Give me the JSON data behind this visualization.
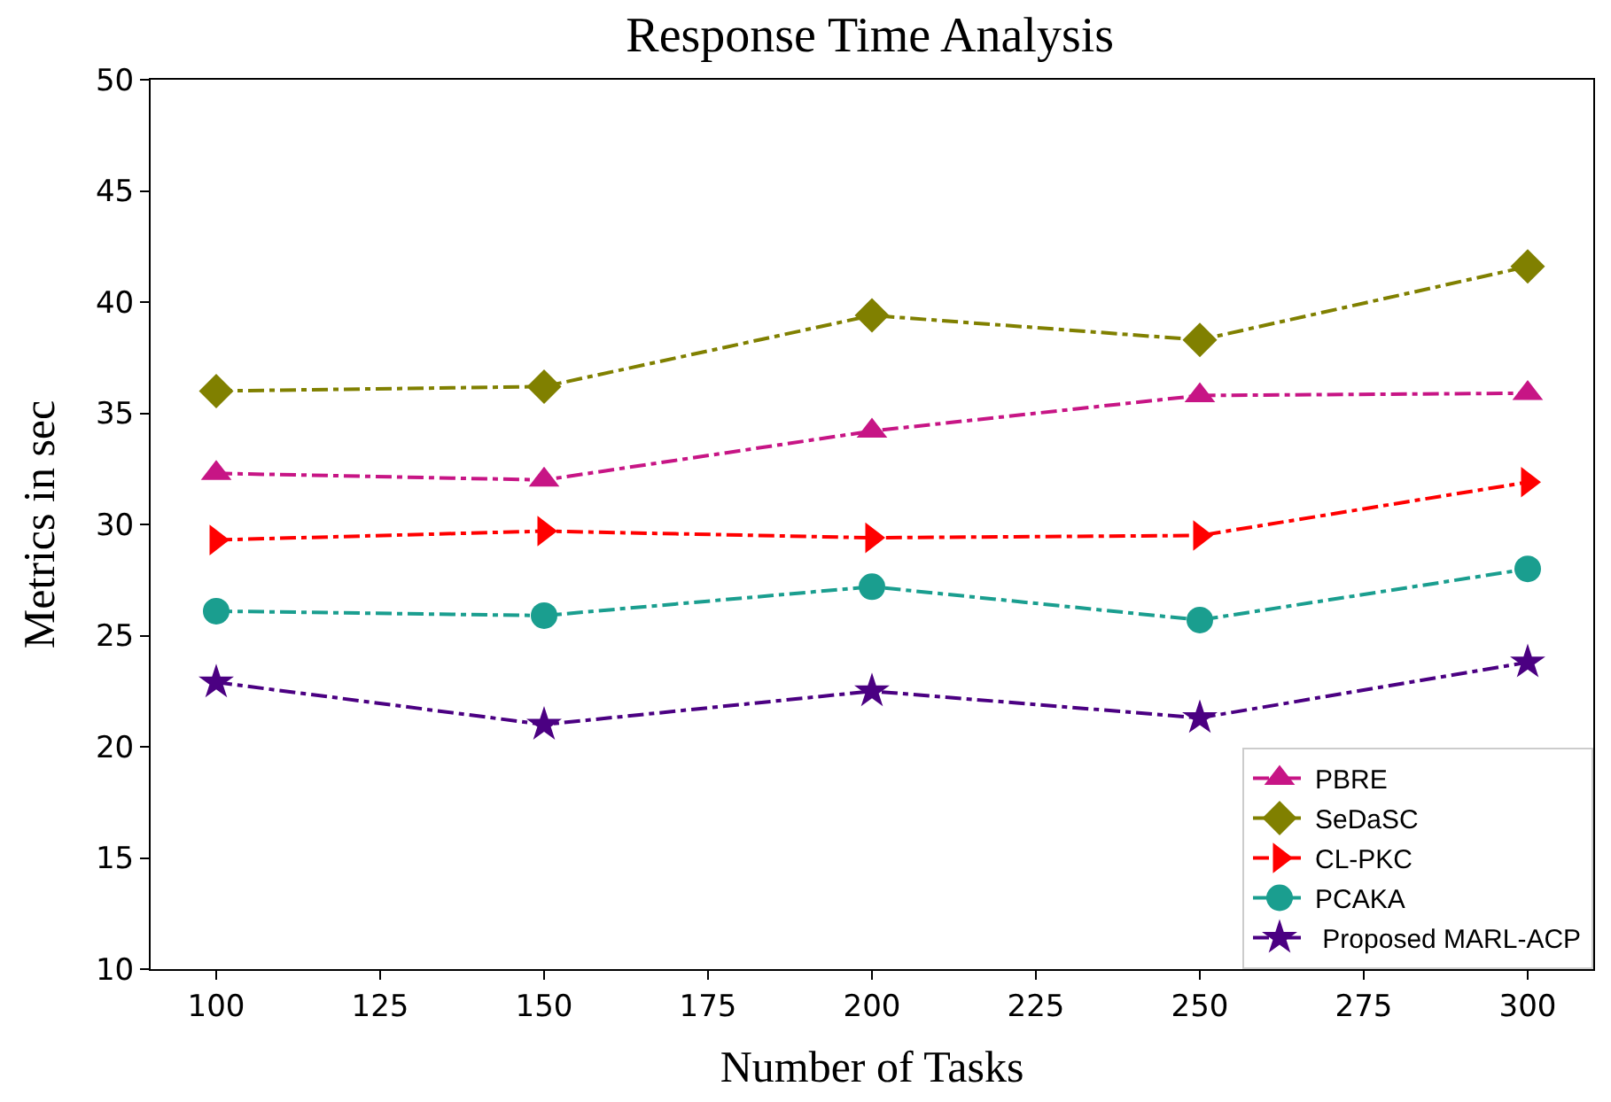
{
  "chart_data": {
    "type": "line",
    "title": "Response Time Analysis",
    "xlabel": "Number of Tasks",
    "ylabel": "Metrics in sec",
    "x": [
      100,
      150,
      200,
      250,
      300
    ],
    "xlim": [
      90,
      310
    ],
    "xticks": [
      100,
      125,
      150,
      175,
      200,
      225,
      250,
      275,
      300
    ],
    "ylim": [
      10,
      50
    ],
    "yticks": [
      10,
      15,
      20,
      25,
      30,
      35,
      40,
      45,
      50
    ],
    "line_style": "dashdot",
    "legend": "bottom right",
    "series": [
      {
        "name": "PBRE",
        "color": "#c71585",
        "marker": "triangle",
        "values": [
          32.3,
          32.0,
          34.2,
          35.8,
          35.9
        ]
      },
      {
        "name": "SeDaSC",
        "color": "#808000",
        "marker": "diamond",
        "values": [
          36.0,
          36.2,
          39.4,
          38.3,
          41.6
        ]
      },
      {
        "name": "CL-PKC",
        "color": "#ff0000",
        "marker": "triangle-right",
        "values": [
          29.3,
          29.7,
          29.4,
          29.5,
          31.9
        ]
      },
      {
        "name": "PCAKA",
        "color": "#1a9e8f",
        "marker": "circle",
        "values": [
          26.1,
          25.9,
          27.2,
          25.7,
          28.0
        ]
      },
      {
        "name": " Proposed MARL-ACP",
        "color": "#4b0082",
        "marker": "star",
        "values": [
          22.9,
          21.0,
          22.5,
          21.3,
          23.8
        ]
      }
    ]
  }
}
